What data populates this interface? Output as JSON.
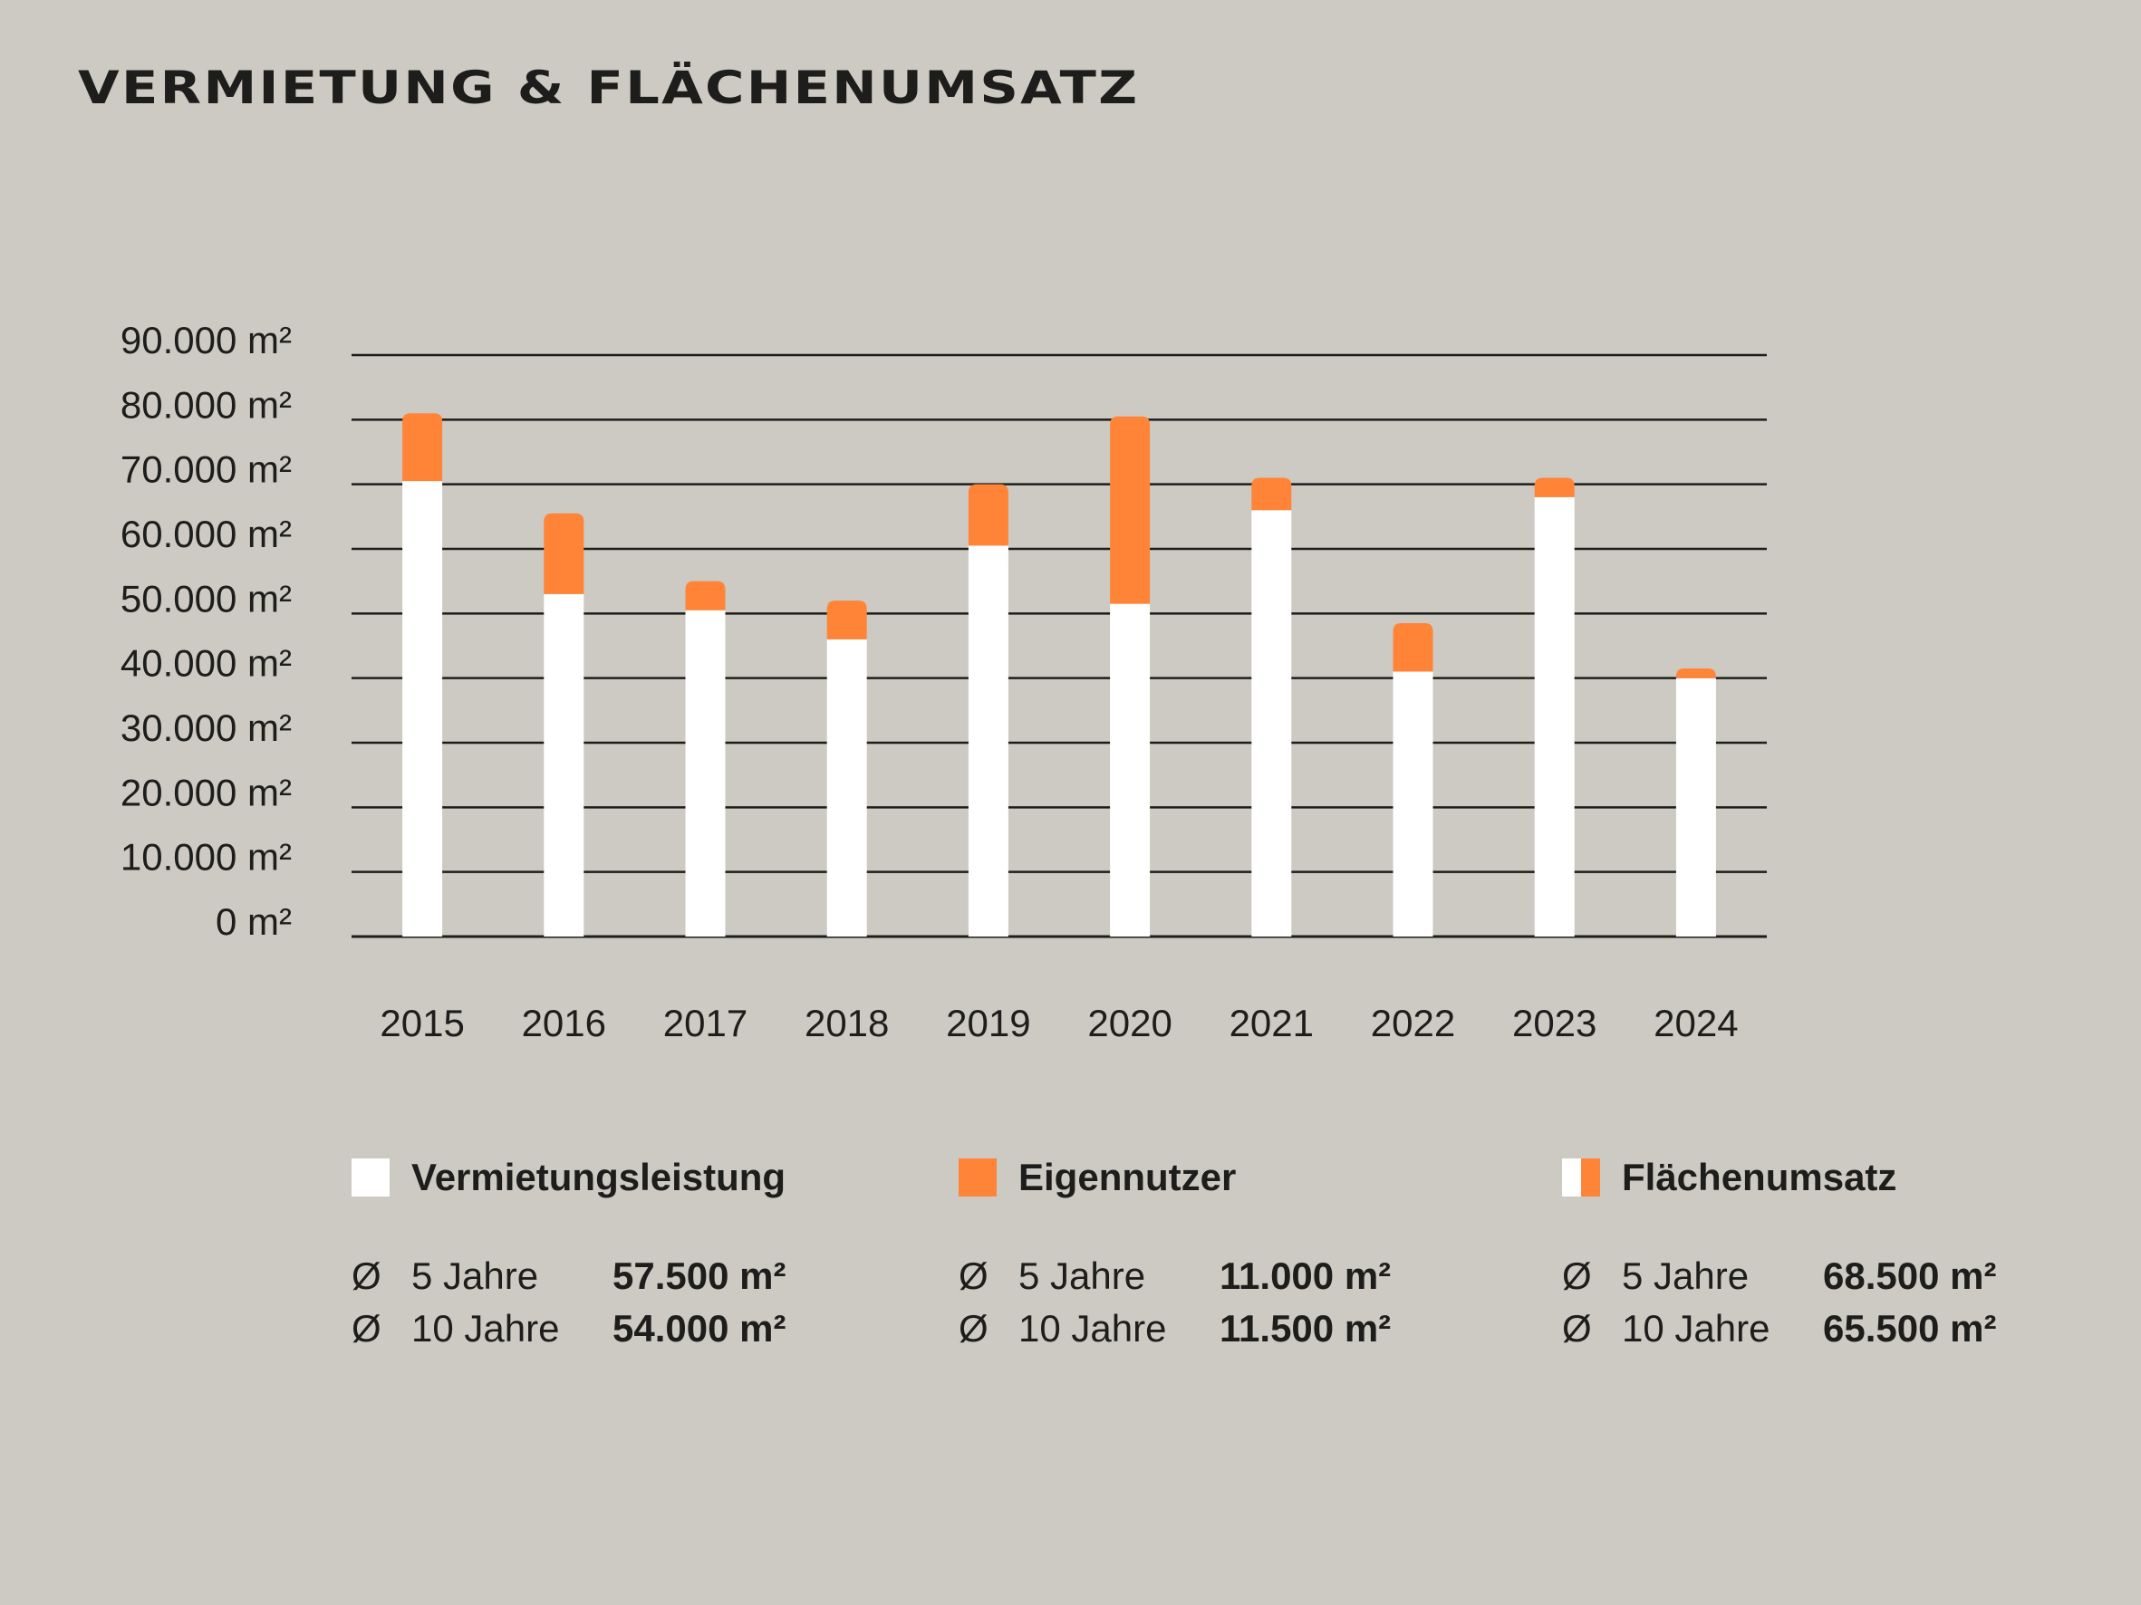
{
  "title": "VERMIETUNG & FLÄCHENUMSATZ",
  "colors": {
    "background": "#cdcac3",
    "vermietung": "#ffffff",
    "eigennutzer": "#ff8438",
    "gridline": "#1d1d1b"
  },
  "chart_data": {
    "type": "bar",
    "stacked": true,
    "title": "VERMIETUNG & FLÄCHENUMSATZ",
    "categories": [
      "2015",
      "2016",
      "2017",
      "2018",
      "2019",
      "2020",
      "2021",
      "2022",
      "2023",
      "2024"
    ],
    "series": [
      {
        "name": "Vermietungsleistung",
        "color": "#ffffff",
        "values": [
          70500,
          53000,
          50500,
          46000,
          60500,
          51500,
          66000,
          41000,
          68000,
          40000
        ]
      },
      {
        "name": "Eigennutzer",
        "color": "#ff8438",
        "values": [
          10500,
          12500,
          4500,
          6000,
          9500,
          29000,
          5000,
          7500,
          3000,
          1500
        ]
      }
    ],
    "y_ticks": [
      "0 m²",
      "10.000 m²",
      "20.000 m²",
      "30.000 m²",
      "40.000 m²",
      "50.000 m²",
      "60.000 m²",
      "70.000 m²",
      "80.000 m²",
      "90.000 m²"
    ],
    "ylim": [
      0,
      90000
    ],
    "grid": true,
    "xlabel": "",
    "ylabel": ""
  },
  "legend": [
    {
      "label": "Vermietungsleistung",
      "stats": [
        {
          "symbol": "Ø",
          "period": "5 Jahre",
          "value": "57.500 m²"
        },
        {
          "symbol": "Ø",
          "period": "10 Jahre",
          "value": "54.000 m²"
        }
      ]
    },
    {
      "label": "Eigennutzer",
      "stats": [
        {
          "symbol": "Ø",
          "period": "5 Jahre",
          "value": "11.000 m²"
        },
        {
          "symbol": "Ø",
          "period": "10 Jahre",
          "value": "11.500 m²"
        }
      ]
    },
    {
      "label": "Flächenumsatz",
      "stats": [
        {
          "symbol": "Ø",
          "period": "5 Jahre",
          "value": "68.500 m²"
        },
        {
          "symbol": "Ø",
          "period": "10 Jahre",
          "value": "65.500 m²"
        }
      ]
    }
  ]
}
